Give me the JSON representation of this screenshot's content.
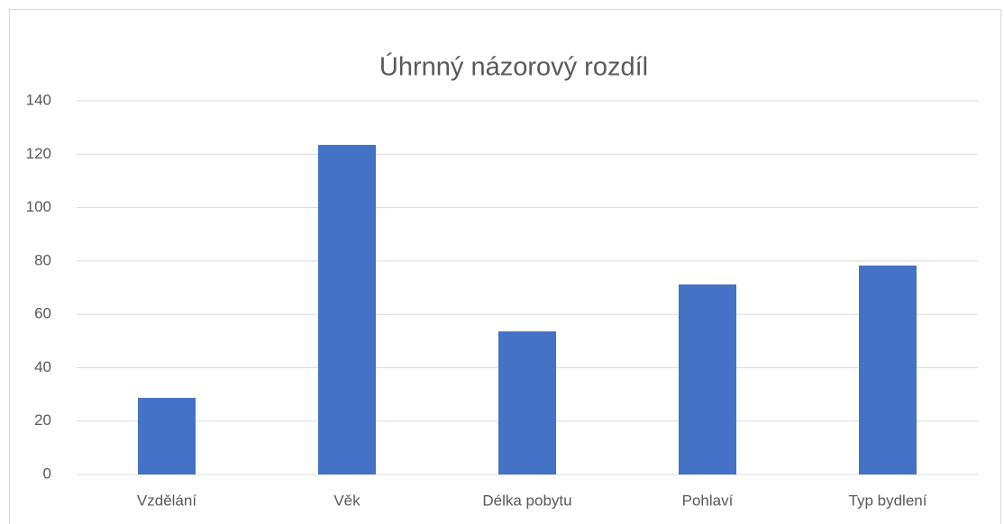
{
  "chart_data": {
    "type": "bar",
    "title": "Úhrnný názorový rozdíl",
    "categories": [
      "Vzdělání",
      "Věk",
      "Délka pobytu",
      "Pohlaví",
      "Typ bydlení"
    ],
    "values": [
      28.7,
      123.5,
      53.6,
      71.2,
      78.3
    ],
    "color": "#4472c4",
    "ylim": [
      0,
      140
    ],
    "yticks": [
      0,
      20,
      40,
      60,
      80,
      100,
      120,
      140
    ],
    "grid": true
  }
}
